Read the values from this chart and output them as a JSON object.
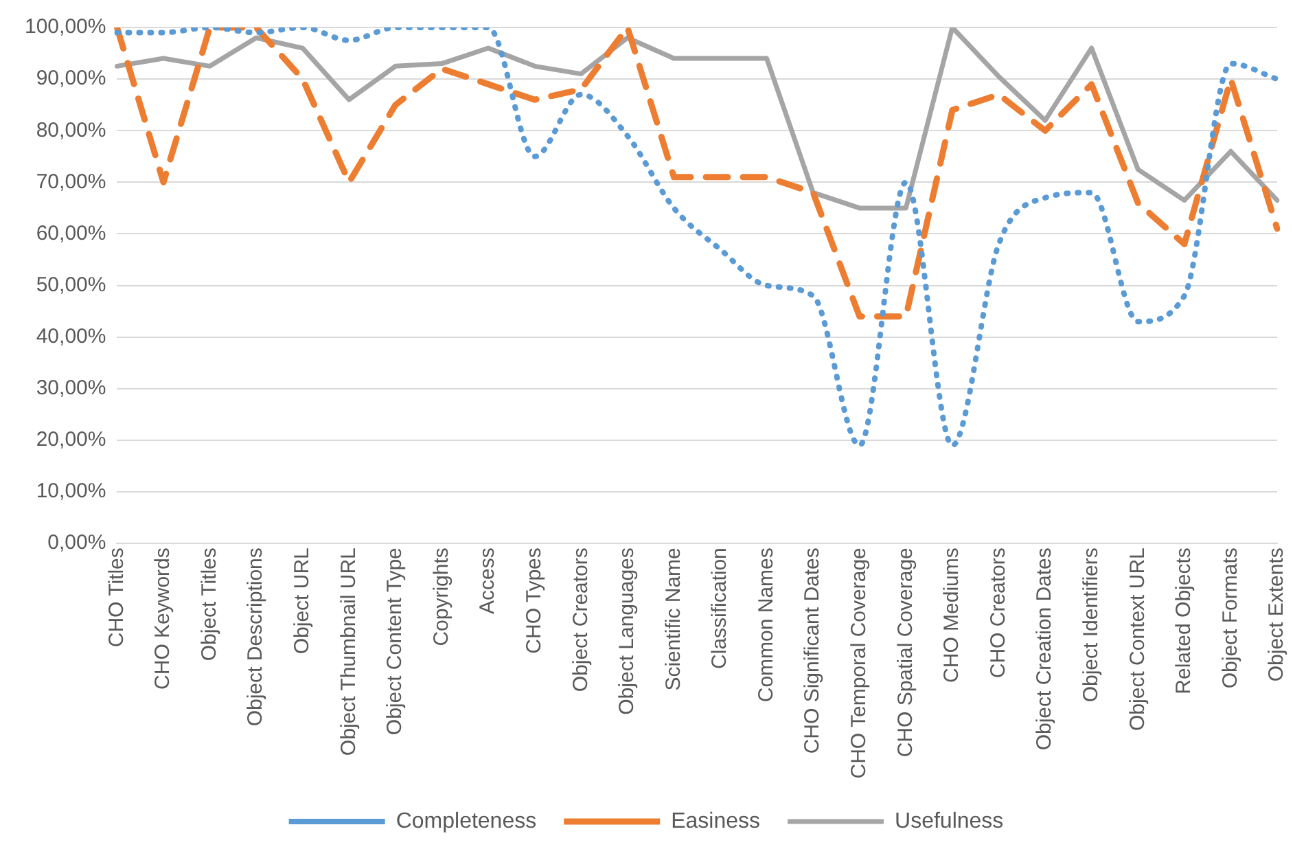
{
  "chart_data": {
    "type": "line",
    "categories": [
      "CHO Titles",
      "CHO Keywords",
      "Object Titles",
      "Object Descriptions",
      "Object URL",
      "Object Thumbnail URL",
      "Object Content Type",
      "Copyrights",
      "Access",
      "CHO Types",
      "Object Creators",
      "Object Languages",
      "Scientific Name",
      "Classification",
      "Common Names",
      "CHO Significant Dates",
      "CHO Temporal Coverage",
      "CHO Spatial Coverage",
      "CHO Mediums",
      "CHO Creators",
      "Object Creation Dates",
      "Object Identifiers",
      "Object Context URL",
      "Related Objects",
      "Object Formats",
      "Object Extents"
    ],
    "series": [
      {
        "name": "Completeness",
        "color": "#5b9bd5",
        "line_style": "dotted",
        "values": [
          99,
          99,
          100,
          99,
          100,
          97.5,
          100,
          100,
          100,
          75,
          87,
          79,
          65,
          57,
          50,
          48,
          19,
          70,
          19,
          58,
          67,
          68,
          43,
          48,
          93,
          90
        ]
      },
      {
        "name": "Easiness",
        "color": "#ed7d31",
        "line_style": "dashed",
        "values": [
          100,
          70,
          100,
          100,
          90,
          70,
          85,
          92,
          89,
          86,
          88,
          100,
          71,
          71,
          71,
          68,
          44,
          44,
          84,
          87,
          80,
          89,
          66,
          58,
          90,
          61
        ]
      },
      {
        "name": "Usefulness",
        "color": "#a5a5a5",
        "line_style": "solid",
        "values": [
          92.5,
          94,
          92.5,
          98,
          96,
          86,
          92.5,
          93,
          96,
          92.5,
          91,
          98,
          94,
          94,
          94,
          68,
          65,
          65,
          100,
          90.5,
          82,
          96,
          72.5,
          66.5,
          76,
          66.5
        ]
      }
    ],
    "ylim": [
      0,
      100
    ],
    "yticks": [
      {
        "value": 0,
        "label": "0,00%"
      },
      {
        "value": 10,
        "label": "10,00%"
      },
      {
        "value": 20,
        "label": "20,00%"
      },
      {
        "value": 30,
        "label": "30,00%"
      },
      {
        "value": 40,
        "label": "40,00%"
      },
      {
        "value": 50,
        "label": "50,00%"
      },
      {
        "value": 60,
        "label": "60,00%"
      },
      {
        "value": 70,
        "label": "70,00%"
      },
      {
        "value": 80,
        "label": "80,00%"
      },
      {
        "value": 90,
        "label": "90,00%"
      },
      {
        "value": 100,
        "label": "100,00%"
      }
    ],
    "grid": "y",
    "legend": "bottom",
    "marker": "none"
  }
}
